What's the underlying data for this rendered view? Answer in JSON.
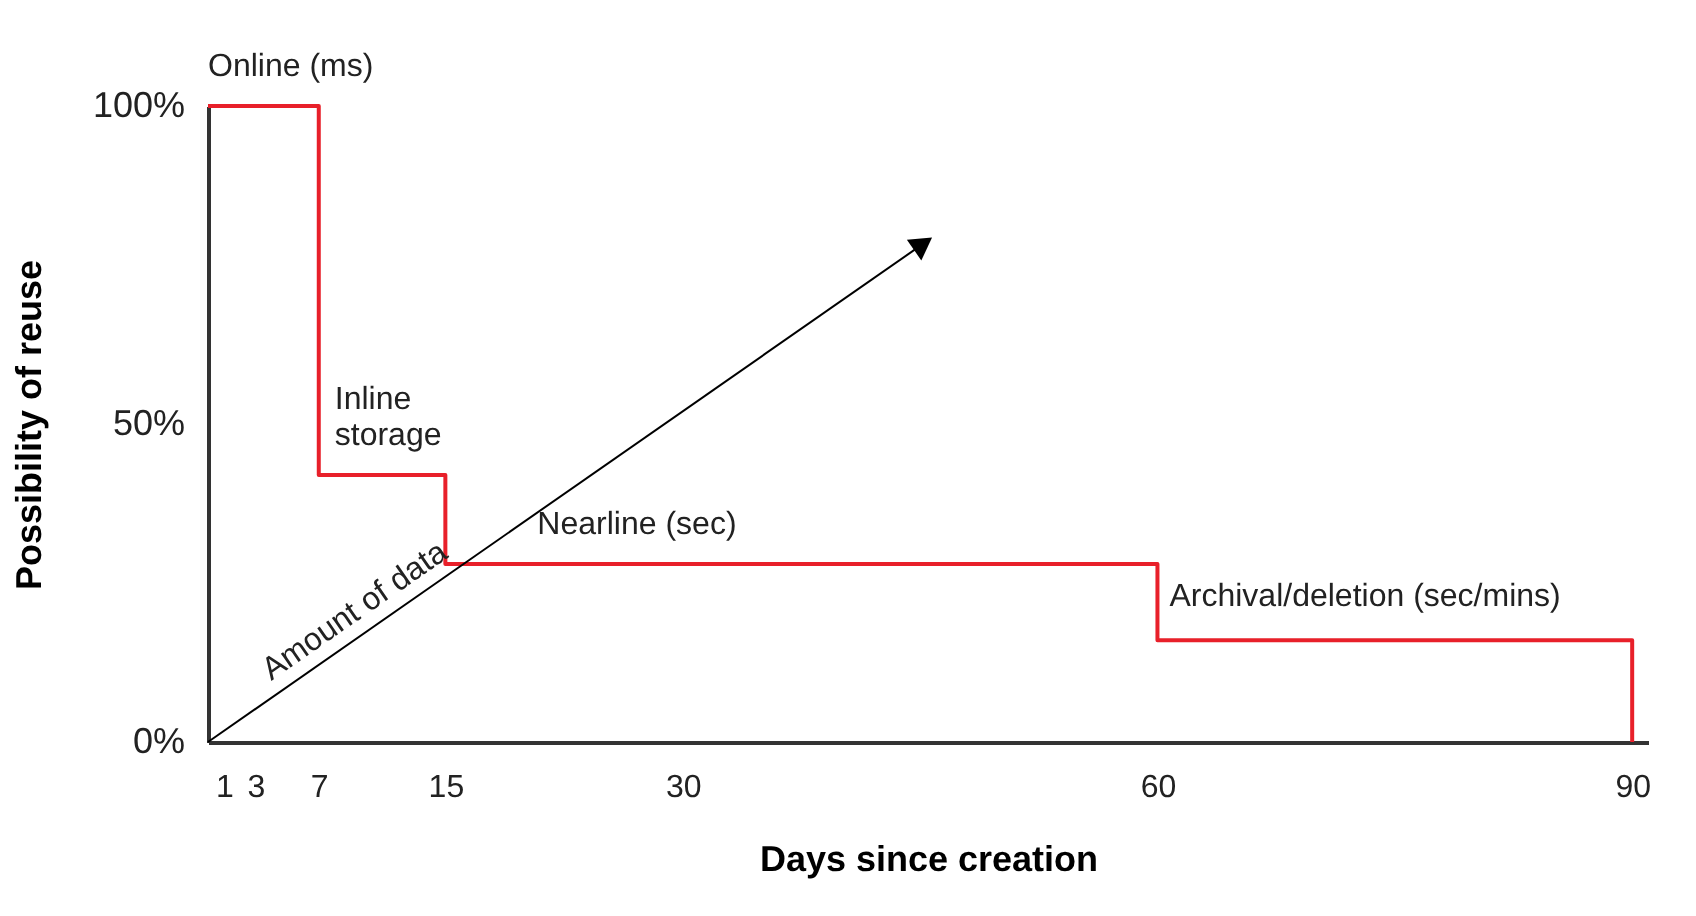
{
  "chart_data": {
    "type": "step",
    "xlabel": "Days since creation",
    "ylabel": "Possibility of reuse",
    "xlim": [
      0,
      91
    ],
    "ylim": [
      0,
      100
    ],
    "xticks": [
      1,
      3,
      7,
      15,
      30,
      60,
      90
    ],
    "yticks": [
      {
        "value": 0,
        "label": "0%"
      },
      {
        "value": 50,
        "label": "50%"
      },
      {
        "value": 100,
        "label": "100%"
      }
    ],
    "series": [
      {
        "color": "#e8202a",
        "x": [
          0,
          7,
          15,
          60,
          90
        ],
        "values": [
          100,
          42,
          28,
          16,
          0
        ]
      },
      {
        "type": "line",
        "color": "#000000",
        "x": [
          0,
          45
        ],
        "values": [
          0,
          78
        ]
      }
    ],
    "annotations": [
      {
        "text": "Online (ms)",
        "x": 0,
        "y": 100
      },
      {
        "text": "Inline\nstorage",
        "x": 7,
        "y": 42
      },
      {
        "text": "Nearline (sec)",
        "x": 15,
        "y": 28
      },
      {
        "text": "Archival/deletion (sec/mins)",
        "x": 60,
        "y": 16
      },
      "Amount of data"
    ],
    "grid": false
  }
}
